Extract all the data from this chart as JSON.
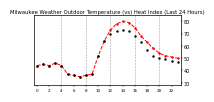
{
  "title": "Milwaukee Weather Outdoor Temperature (vs) Heat Index (Last 24 Hours)",
  "bg_color": "#ffffff",
  "plot_bg_color": "#ffffff",
  "grid_color": "#999999",
  "line1_color": "#ff0000",
  "line2_color": "#000000",
  "x_values": [
    0,
    1,
    2,
    3,
    4,
    5,
    6,
    7,
    8,
    9,
    10,
    11,
    12,
    13,
    14,
    15,
    16,
    17,
    18,
    19,
    20,
    21,
    22,
    23
  ],
  "red_y": [
    44,
    45,
    44,
    46,
    44,
    37,
    36,
    35,
    36,
    37,
    52,
    64,
    73,
    78,
    80,
    79,
    75,
    68,
    63,
    58,
    54,
    52,
    51,
    50
  ],
  "black_y": [
    44,
    45,
    44,
    46,
    44,
    37,
    36,
    35,
    36,
    37,
    52,
    64,
    70,
    72,
    73,
    72,
    68,
    63,
    57,
    52,
    50,
    49,
    48,
    47
  ],
  "ylim": [
    28,
    85
  ],
  "yticks": [
    30,
    40,
    50,
    60,
    70,
    80
  ],
  "ylabel_fontsize": 3.5,
  "xlabel_fontsize": 3.0,
  "title_fontsize": 3.8,
  "grid_x_positions": [
    4,
    8,
    12,
    16,
    20
  ],
  "x_tick_positions": [
    0,
    2,
    4,
    6,
    8,
    10,
    12,
    14,
    16,
    18,
    20,
    22
  ],
  "x_tick_labels": [
    "0",
    "2",
    "4",
    "6",
    "8",
    "10",
    "12",
    "14",
    "16",
    "18",
    "20",
    "22"
  ]
}
